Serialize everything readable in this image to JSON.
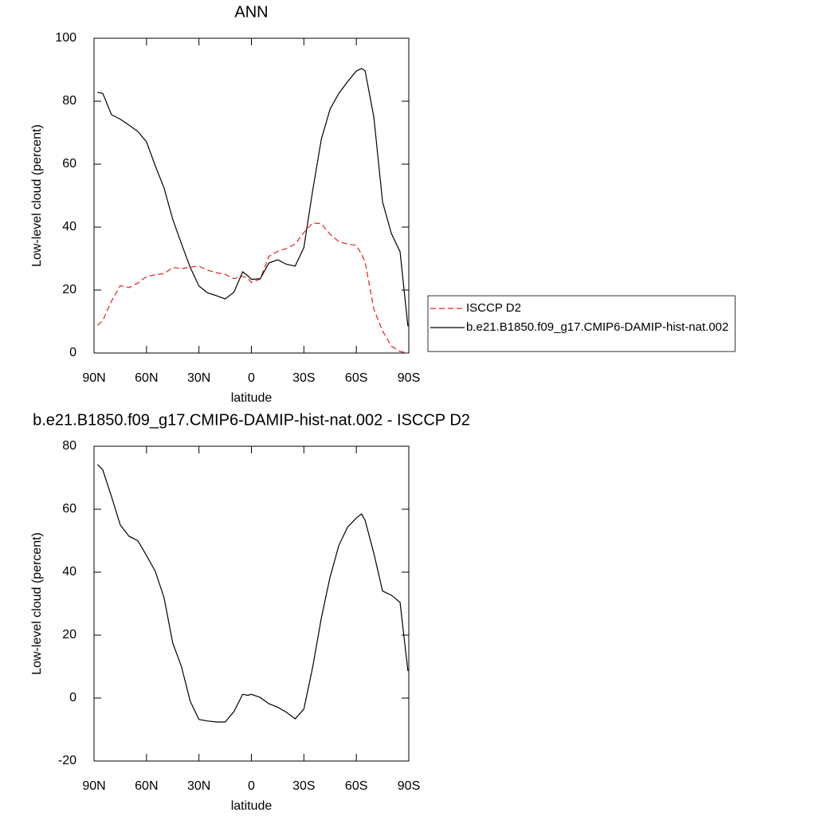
{
  "chart_data": [
    {
      "type": "line",
      "title": "ANN",
      "xlabel": "latitude",
      "ylabel": "Low-level cloud (percent)",
      "x": [
        88,
        85,
        80,
        75,
        70,
        65,
        60,
        55,
        50,
        45,
        40,
        35,
        30,
        25,
        20,
        15,
        10,
        5,
        2,
        0,
        -5,
        -10,
        -15,
        -20,
        -25,
        -30,
        -35,
        -40,
        -45,
        -50,
        -55,
        -60,
        -63,
        -65,
        -70,
        -75,
        -80,
        -85,
        -89.5
      ],
      "series": [
        {
          "name": "ISCCP D2",
          "color": "#e8201f",
          "line_style": "dashed",
          "values": [
            8.8,
            10.3,
            16.5,
            21.4,
            20.8,
            22.2,
            24.3,
            24.9,
            25.2,
            27.2,
            26.8,
            27.3,
            27.6,
            26.3,
            25.5,
            25.0,
            23.6,
            24.4,
            23.7,
            22.4,
            23.5,
            30.7,
            32.3,
            33.2,
            34.6,
            38.3,
            41.3,
            41.1,
            37.7,
            35.4,
            34.6,
            34.2,
            31.4,
            29.0,
            14.0,
            7.0,
            2.2,
            0.5,
            0
          ]
        },
        {
          "name": "b.e21.B1850.f09_g17.CMIP6-DAMIP-hist-nat.002",
          "color": "#000000",
          "line_style": "solid",
          "values": [
            82.8,
            82.5,
            75.7,
            74.3,
            72.4,
            70.4,
            67.1,
            59.5,
            52.5,
            42.5,
            34.7,
            27.2,
            21.3,
            19.1,
            18.2,
            17.2,
            19.3,
            25.8,
            24.5,
            23.4,
            23.6,
            28.6,
            29.6,
            28.2,
            27.6,
            33.5,
            51.5,
            68.0,
            77.5,
            82.5,
            86.2,
            89.6,
            90.4,
            89.7,
            75.0,
            48.0,
            38.0,
            32.2,
            8.5
          ]
        }
      ],
      "xlim": [
        90,
        -90
      ],
      "xticks": [
        {
          "value": 90,
          "label": "90N"
        },
        {
          "value": 60,
          "label": "60N"
        },
        {
          "value": 30,
          "label": "30N"
        },
        0,
        {
          "value": -30,
          "label": "30S"
        },
        {
          "value": -60,
          "label": "60S"
        },
        {
          "value": -90,
          "label": "90S"
        }
      ],
      "ylim": [
        0,
        100
      ],
      "yticks": [
        0,
        20,
        40,
        60,
        80,
        100
      ],
      "legend": "right"
    },
    {
      "type": "line",
      "title": "b.e21.B1850.f09_g17.CMIP6-DAMIP-hist-nat.002 - ISCCP D2",
      "xlabel": "latitude",
      "ylabel": "Low-level cloud (percent)",
      "x": [
        88,
        85,
        80,
        75,
        70,
        65,
        60,
        55,
        50,
        45,
        40,
        35,
        30,
        25,
        20,
        15,
        10,
        5,
        2,
        0,
        -5,
        -10,
        -15,
        -20,
        -25,
        -30,
        -35,
        -40,
        -45,
        -50,
        -55,
        -60,
        -63,
        -65,
        -70,
        -75,
        -80,
        -85,
        -89.5
      ],
      "series": [
        {
          "color": "#000000",
          "line_style": "solid",
          "values": [
            74.2,
            72.5,
            64.0,
            55.0,
            51.4,
            50.0,
            45.3,
            40.3,
            32.0,
            17.5,
            10.0,
            -1.0,
            -6.8,
            -7.3,
            -7.6,
            -7.6,
            -4.3,
            1.2,
            0.9,
            1.2,
            0.2,
            -1.8,
            -2.9,
            -4.5,
            -6.6,
            -3.5,
            9.7,
            25.5,
            38.5,
            48.5,
            54.3,
            57.2,
            58.5,
            56.5,
            46.0,
            34.0,
            32.7,
            30.4,
            8.6
          ]
        }
      ],
      "xlim": [
        90,
        -90
      ],
      "xticks": [
        {
          "value": 90,
          "label": "90N"
        },
        {
          "value": 60,
          "label": "60N"
        },
        {
          "value": 30,
          "label": "30N"
        },
        0,
        {
          "value": -30,
          "label": "30S"
        },
        {
          "value": -60,
          "label": "60S"
        },
        {
          "value": -90,
          "label": "90S"
        }
      ],
      "ylim": [
        -20,
        80
      ],
      "yticks": [
        -20,
        0,
        20,
        40,
        60,
        80
      ]
    }
  ]
}
